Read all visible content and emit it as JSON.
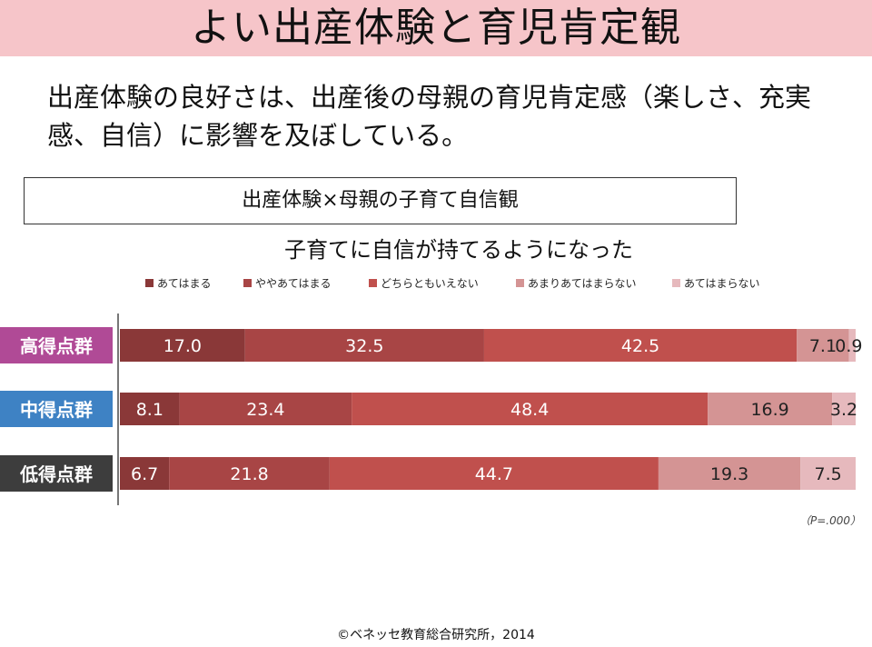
{
  "title": "よい出産体験と育児肯定観",
  "lead_text": "出産体験の良好さは、出産後の母親の育児肯定感（楽しさ、充実感、自信）に影響を及ぼしている。",
  "box_label": "出産体験×母親の子育て自信観",
  "p_value": "（P=.000）",
  "credit": "©ベネッセ教育総合研究所，2014",
  "colors": {
    "title_band": "#f6c5c9",
    "series": [
      "#8a3838",
      "#a84545",
      "#c0504d",
      "#d49494",
      "#e6b9bd"
    ],
    "groups": [
      "#b04a96",
      "#3e82c4",
      "#3d3d3d"
    ]
  },
  "chart_data": {
    "type": "bar",
    "orientation": "horizontal",
    "stacked": true,
    "title": "子育てに自信が持てるようになった",
    "categories": [
      "高得点群",
      "中得点群",
      "低得点群"
    ],
    "series": [
      {
        "name": "あてはまる",
        "values": [
          17.0,
          8.1,
          6.7
        ]
      },
      {
        "name": "ややあてはまる",
        "values": [
          32.5,
          23.4,
          21.8
        ]
      },
      {
        "name": "どちらともいえない",
        "values": [
          42.5,
          48.4,
          44.7
        ]
      },
      {
        "name": "あまりあてはまらない",
        "values": [
          7.1,
          16.9,
          19.3
        ]
      },
      {
        "name": "あてはまらない",
        "values": [
          0.9,
          3.2,
          7.5
        ]
      }
    ],
    "value_labels": [
      [
        "17.0",
        "32.5",
        "42.5",
        "7.1",
        "0.9"
      ],
      [
        "8.1",
        "23.4",
        "48.4",
        "16.9",
        "3.2"
      ],
      [
        "6.7",
        "21.8",
        "44.7",
        "19.3",
        "7.5"
      ]
    ],
    "xlim": [
      0,
      100
    ],
    "legend_position": "top",
    "grid": false
  }
}
